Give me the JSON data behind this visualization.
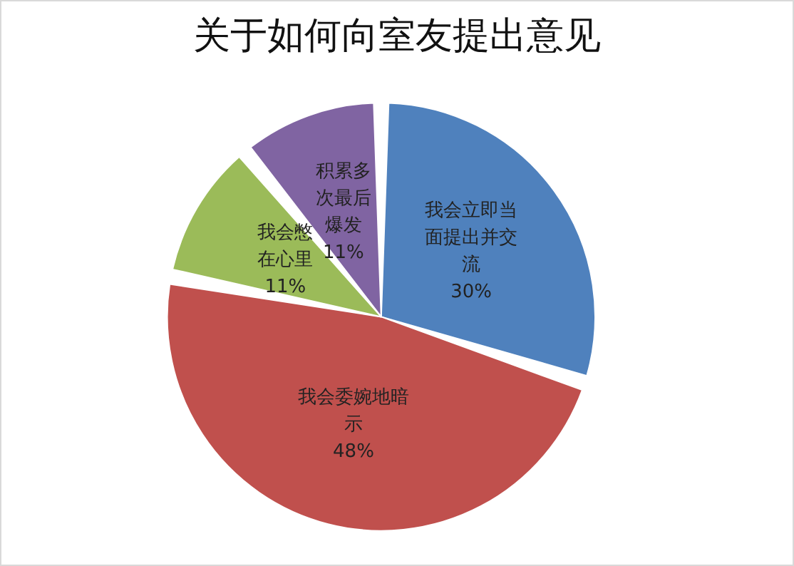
{
  "chart_data": {
    "type": "pie",
    "title": "关于如何向室友提出意见",
    "categories": [
      "我会立即当面提出并交流",
      "我会委婉地暗示",
      "我会憋在心里",
      "积累多次最后爆发"
    ],
    "values": [
      30,
      48,
      11,
      11
    ],
    "colors": [
      "#4f81bd",
      "#c0504d",
      "#9bbb59",
      "#8064a2"
    ],
    "value_labels": [
      "30%",
      "48%",
      "11%",
      "11%"
    ],
    "legend": false
  }
}
